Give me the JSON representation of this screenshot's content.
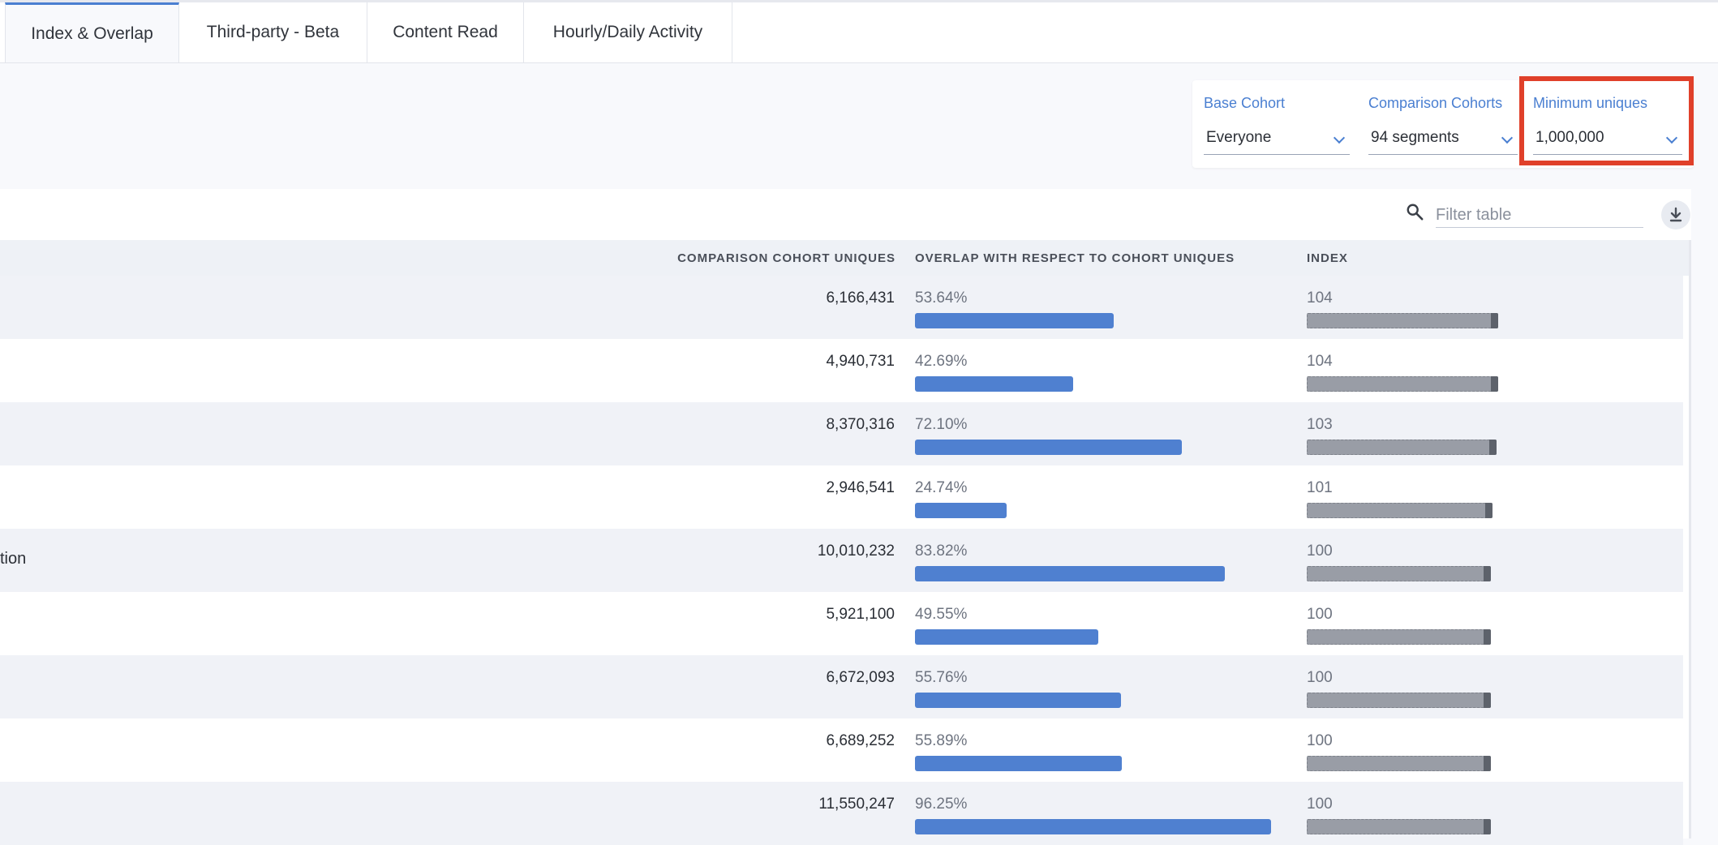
{
  "tabs": [
    {
      "label": "Index & Overlap",
      "active": true
    },
    {
      "label": "Third-party - Beta",
      "active": false
    },
    {
      "label": "Content Read",
      "active": false
    },
    {
      "label": "Hourly/Daily Activity",
      "active": false
    }
  ],
  "filters": {
    "base_cohort": {
      "label": "Base Cohort",
      "value": "Everyone"
    },
    "comparison_cohorts": {
      "label": "Comparison Cohorts",
      "value": "94 segments"
    },
    "minimum_uniques": {
      "label": "Minimum uniques",
      "value": "1,000,000"
    }
  },
  "table": {
    "filter_placeholder": "Filter table",
    "columns": {
      "uniques": "COMPARISON COHORT UNIQUES",
      "overlap": "OVERLAP WITH RESPECT TO COHORT UNIQUES",
      "index": "INDEX"
    },
    "rows": [
      {
        "name": "",
        "uniques": "6,166,431",
        "overlap": "53.64%",
        "overlap_pct": 53.64,
        "index": "104",
        "index_value": 104
      },
      {
        "name": "",
        "uniques": "4,940,731",
        "overlap": "42.69%",
        "overlap_pct": 42.69,
        "index": "104",
        "index_value": 104
      },
      {
        "name": "",
        "uniques": "8,370,316",
        "overlap": "72.10%",
        "overlap_pct": 72.1,
        "index": "103",
        "index_value": 103
      },
      {
        "name": "",
        "uniques": "2,946,541",
        "overlap": "24.74%",
        "overlap_pct": 24.74,
        "index": "101",
        "index_value": 101
      },
      {
        "name": "tion",
        "uniques": "10,010,232",
        "overlap": "83.82%",
        "overlap_pct": 83.82,
        "index": "100",
        "index_value": 100
      },
      {
        "name": "",
        "uniques": "5,921,100",
        "overlap": "49.55%",
        "overlap_pct": 49.55,
        "index": "100",
        "index_value": 100
      },
      {
        "name": "",
        "uniques": "6,672,093",
        "overlap": "55.76%",
        "overlap_pct": 55.76,
        "index": "100",
        "index_value": 100
      },
      {
        "name": "",
        "uniques": "6,689,252",
        "overlap": "55.89%",
        "overlap_pct": 55.89,
        "index": "100",
        "index_value": 100
      },
      {
        "name": "",
        "uniques": "11,550,247",
        "overlap": "96.25%",
        "overlap_pct": 96.25,
        "index": "100",
        "index_value": 100
      }
    ]
  },
  "colors": {
    "accent": "#4a7fd1",
    "overlap_bar": "#4f80d0",
    "index_bar": "#999da6",
    "highlight": "#e0402a"
  },
  "icons": {
    "search": "search-icon",
    "download": "download-icon",
    "dropdown": "chevron-down-icon"
  }
}
